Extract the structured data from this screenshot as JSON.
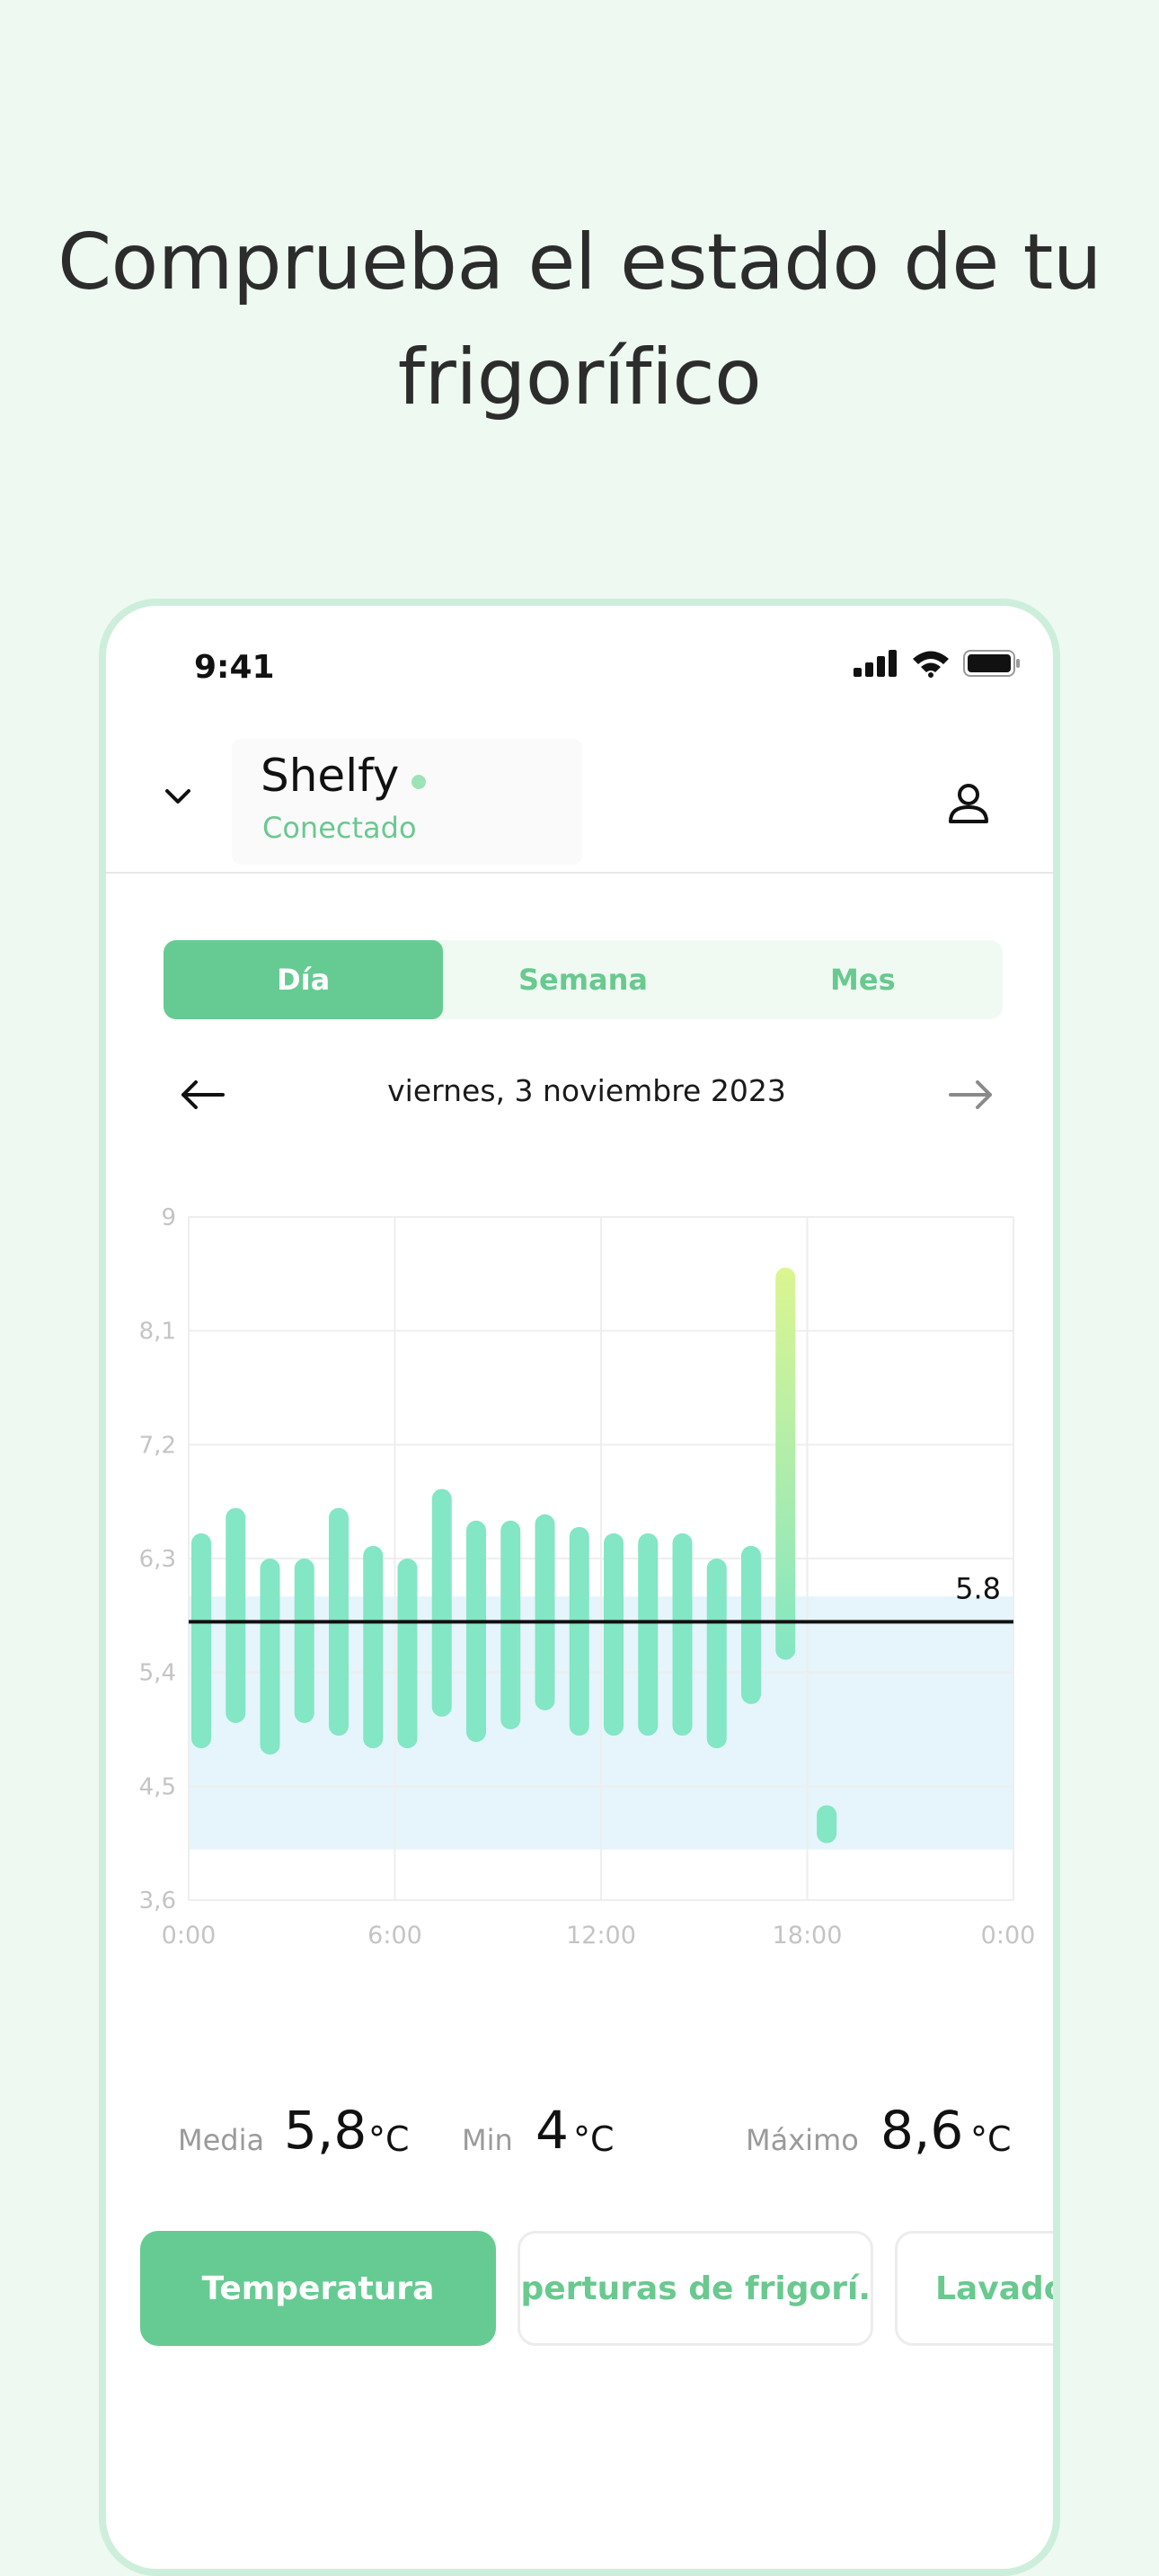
{
  "headline": {
    "line1": "Comprueba el estado de tu",
    "line2": "frigorífico"
  },
  "status_bar": {
    "time": "9:41"
  },
  "header": {
    "device_name": "Shelfy",
    "device_status": "Conectado"
  },
  "tabs": [
    {
      "label": "Día",
      "active": true
    },
    {
      "label": "Semana",
      "active": false
    },
    {
      "label": "Mes",
      "active": false
    }
  ],
  "date_nav": {
    "date": "viernes, 3 noviembre 2023"
  },
  "chart_data": {
    "type": "bar",
    "subtype": "range",
    "x_ticks": [
      "0:00",
      "6:00",
      "12:00",
      "18:00",
      "0:00"
    ],
    "y_ticks": [
      "9",
      "8,1",
      "7,2",
      "6,3",
      "5,4",
      "4,5",
      "3,6"
    ],
    "ylim": [
      3.6,
      9
    ],
    "xlim_hours": [
      0,
      24
    ],
    "reference_line": {
      "value": 5.8,
      "label": "5.8"
    },
    "target_band": [
      4,
      6
    ],
    "bars": [
      {
        "hour": 0,
        "low": 4.8,
        "high": 6.5
      },
      {
        "hour": 1,
        "low": 5.0,
        "high": 6.7
      },
      {
        "hour": 2,
        "low": 4.75,
        "high": 6.3
      },
      {
        "hour": 3,
        "low": 5.0,
        "high": 6.3
      },
      {
        "hour": 4,
        "low": 4.9,
        "high": 6.7
      },
      {
        "hour": 5,
        "low": 4.8,
        "high": 6.4
      },
      {
        "hour": 6,
        "low": 4.8,
        "high": 6.3
      },
      {
        "hour": 7,
        "low": 5.05,
        "high": 6.85
      },
      {
        "hour": 8,
        "low": 4.85,
        "high": 6.6
      },
      {
        "hour": 9,
        "low": 4.95,
        "high": 6.6
      },
      {
        "hour": 10,
        "low": 5.1,
        "high": 6.65
      },
      {
        "hour": 11,
        "low": 4.9,
        "high": 6.55
      },
      {
        "hour": 12,
        "low": 4.9,
        "high": 6.5
      },
      {
        "hour": 13,
        "low": 4.9,
        "high": 6.5
      },
      {
        "hour": 14,
        "low": 4.9,
        "high": 6.5
      },
      {
        "hour": 15,
        "low": 4.8,
        "high": 6.3
      },
      {
        "hour": 16,
        "low": 5.15,
        "high": 6.4
      },
      {
        "hour": 17,
        "low": 5.5,
        "high": 8.6
      },
      {
        "hour": 18.2,
        "low": 4.05,
        "high": 4.35
      }
    ],
    "colors": {
      "bar": "#83e6c4",
      "bar_peak": "#dcf590",
      "band": "#e5f5fb",
      "reference": "#111111",
      "grid": "#eeeeee"
    }
  },
  "stats": [
    {
      "label": "Media",
      "value": "5,8",
      "unit": "°C"
    },
    {
      "label": "Min",
      "value": "4",
      "unit": "°C"
    },
    {
      "label": "Máximo",
      "value": "8,6",
      "unit": "°C"
    }
  ],
  "chips": [
    {
      "label": "Temperatura",
      "active": true
    },
    {
      "label": "Aperturas de frigorí...",
      "active": false
    },
    {
      "label": "Lavado",
      "active": false
    }
  ],
  "icons": {
    "chevron": "chevron-down-icon",
    "user": "user-icon",
    "prev": "arrow-left-icon",
    "next": "arrow-right-icon",
    "signal": "cellular-signal-icon",
    "wifi": "wifi-icon",
    "battery": "battery-icon"
  },
  "colors": {
    "accent": "#66cb92",
    "accent_text": "#69c98f",
    "background": "#edf9f1",
    "frame": "#cdeedb"
  }
}
